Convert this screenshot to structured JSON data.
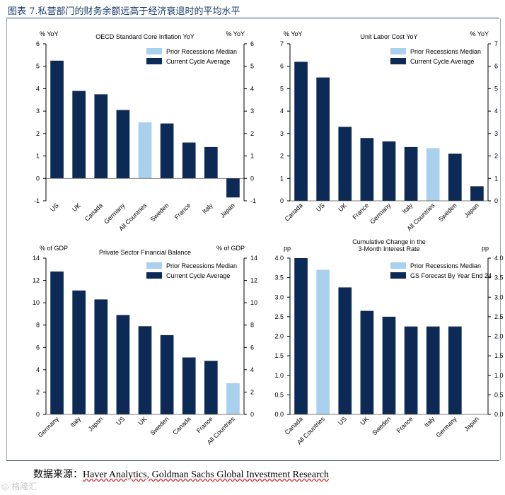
{
  "figure": {
    "title": "图表 7.私营部门的财务余额远高于经济衰退时的平均水平",
    "source_label": "数据来源：",
    "source_text": "Haver Analytics, Goldman Sachs Global Investment Research",
    "watermark": "格隆汇"
  },
  "colors": {
    "navy": "#0c2a55",
    "light_blue": "#a9d0ec",
    "axis": "#000000",
    "title_color": "#1a3a6b"
  },
  "chart_data": [
    {
      "type": "bar",
      "title": [
        "OECD Standard Core Inflation YoY"
      ],
      "ylabel_left": "% YoY",
      "ylabel_right": "% YoY",
      "ylim": [
        -1,
        6
      ],
      "yticks": [
        -1,
        0,
        1,
        2,
        3,
        4,
        5,
        6
      ],
      "tick_decimals": 0,
      "categories": [
        "US",
        "UK",
        "Canada",
        "Germany",
        "All Countries",
        "Sweden",
        "France",
        "Italy",
        "Japan"
      ],
      "values": [
        5.25,
        3.9,
        3.75,
        3.05,
        2.5,
        2.45,
        1.6,
        1.4,
        -0.85
      ],
      "highlight": [
        4
      ],
      "legend": [
        "Prior Recessions Median",
        "Current Cycle Average"
      ]
    },
    {
      "type": "bar",
      "title": [
        "Unit Labor Cost YoY"
      ],
      "ylabel_left": "% YoY",
      "ylabel_right": "% YoY",
      "ylim": [
        0,
        7
      ],
      "yticks": [
        0,
        1,
        2,
        3,
        4,
        5,
        6,
        7
      ],
      "tick_decimals": 0,
      "categories": [
        "Canada",
        "US",
        "UK",
        "France",
        "Germany",
        "Italy",
        "All Countries",
        "Sweden",
        "Japan"
      ],
      "values": [
        6.2,
        5.5,
        3.3,
        2.8,
        2.65,
        2.4,
        2.35,
        2.1,
        0.65
      ],
      "highlight": [
        6
      ],
      "legend": [
        "Prior Recessions Median",
        "Current Cycle Average"
      ]
    },
    {
      "type": "bar",
      "title": [
        "Private Sector Financial Balance"
      ],
      "ylabel_left": "% of GDP",
      "ylabel_right": "% of GDP",
      "ylim": [
        0,
        14
      ],
      "yticks": [
        0,
        2,
        4,
        6,
        8,
        10,
        12,
        14
      ],
      "tick_decimals": 0,
      "categories": [
        "Germany",
        "Italy",
        "Japan",
        "US",
        "UK",
        "Sweden",
        "Canada",
        "France",
        "All Countries"
      ],
      "values": [
        12.8,
        11.1,
        10.3,
        8.9,
        7.9,
        7.1,
        5.1,
        4.8,
        2.8
      ],
      "highlight": [
        8
      ],
      "legend": [
        "Prior Recessions Median",
        "Current Cycle Average"
      ]
    },
    {
      "type": "bar",
      "title": [
        "Cumulative Change in the",
        "3-Month Interest Rate"
      ],
      "ylabel_left": "pp",
      "ylabel_right": "pp",
      "ylim": [
        0,
        4
      ],
      "yticks": [
        0,
        0.5,
        1,
        1.5,
        2,
        2.5,
        3,
        3.5,
        4
      ],
      "tick_decimals": 1,
      "categories": [
        "Canada",
        "All Countries",
        "US",
        "UK",
        "Sweden",
        "France",
        "Italy",
        "Germany",
        "Japan"
      ],
      "values": [
        4.0,
        3.7,
        3.25,
        2.65,
        2.5,
        2.25,
        2.25,
        2.25,
        0
      ],
      "highlight": [
        1
      ],
      "legend": [
        "Prior Recessions Median",
        "GS Forecast By Year End 24"
      ]
    }
  ]
}
